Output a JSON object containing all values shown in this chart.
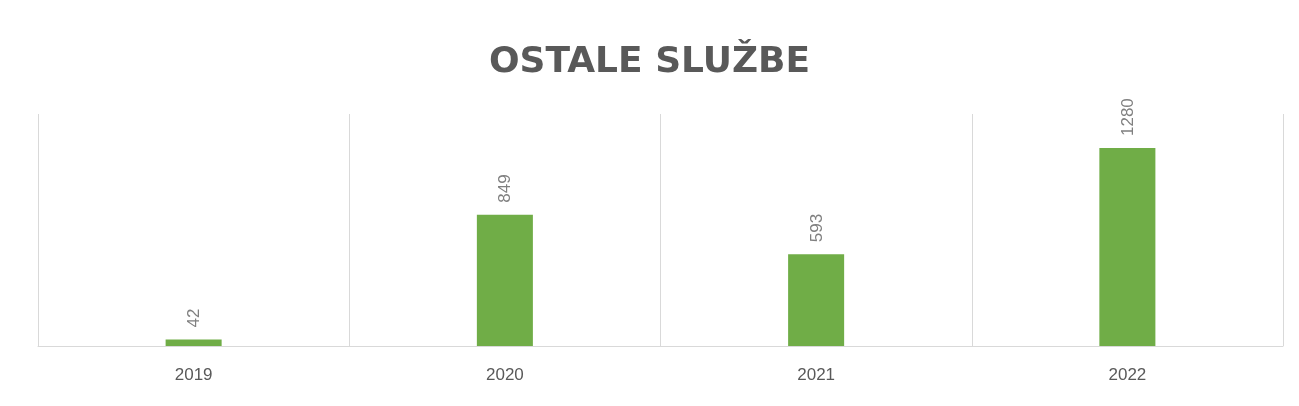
{
  "chart_data": {
    "type": "bar",
    "title": "OSTALE SLUŽBE",
    "categories": [
      "2019",
      "2020",
      "2021",
      "2022"
    ],
    "values": [
      42,
      849,
      593,
      1280
    ],
    "color": "#70ad47",
    "data_labels": true,
    "grid": "x"
  }
}
